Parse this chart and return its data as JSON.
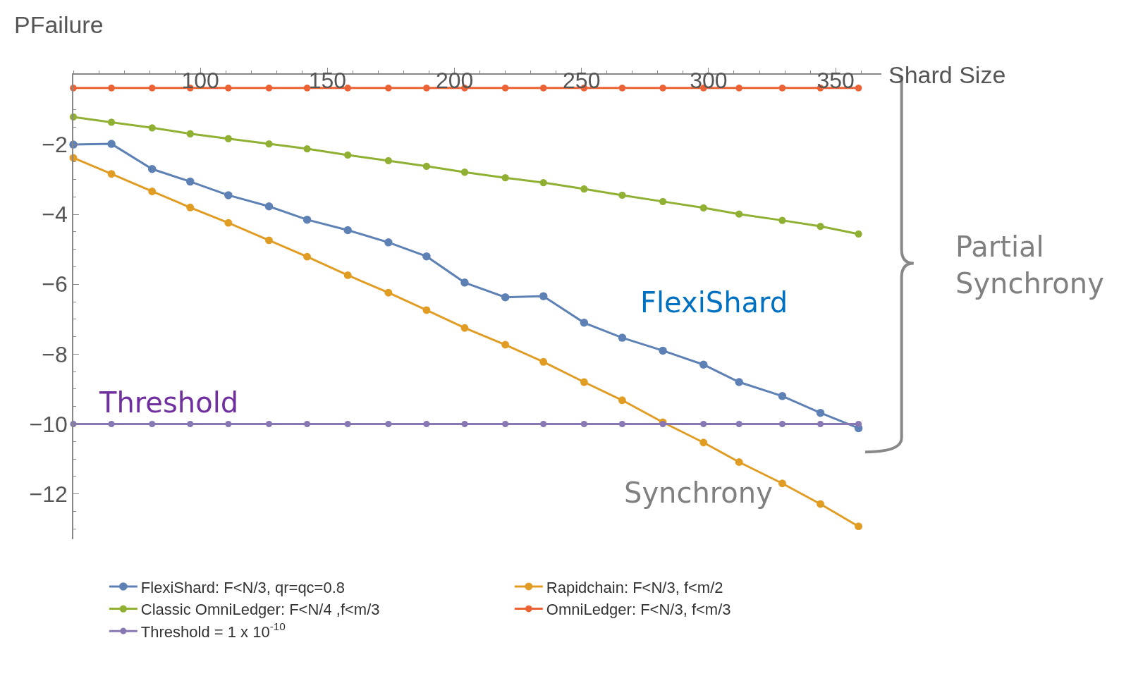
{
  "chart_data": {
    "type": "line",
    "xlabel": "Shard Size",
    "ylabel": "PFailure",
    "x": [
      50,
      65,
      81,
      96,
      111,
      127,
      142,
      158,
      174,
      189,
      204,
      220,
      235,
      251,
      266,
      282,
      298,
      312,
      329,
      344,
      359
    ],
    "series": [
      {
        "name": "FlexiShard: F<N/3, qr=qc=0.8",
        "color": "#5e81b5",
        "values": [
          -2.0,
          -1.98,
          -2.7,
          -3.06,
          -3.45,
          -3.77,
          -4.15,
          -4.45,
          -4.8,
          -5.2,
          -5.95,
          -6.37,
          -6.34,
          -7.1,
          -7.53,
          -7.9,
          -8.3,
          -8.8,
          -9.2,
          -9.68,
          -10.12
        ]
      },
      {
        "name": "Rapidchain: F<N/3, f<m/2",
        "color": "#e19c24",
        "values": [
          -2.38,
          -2.84,
          -3.34,
          -3.8,
          -4.24,
          -4.74,
          -5.21,
          -5.74,
          -6.24,
          -6.74,
          -7.25,
          -7.73,
          -8.22,
          -8.8,
          -9.32,
          -9.95,
          -10.53,
          -11.09,
          -11.7,
          -12.29,
          -12.93
        ]
      },
      {
        "name": "Classic OmniLedger: F<N/4 ,f<m/3",
        "color": "#8fb032",
        "values": [
          -1.21,
          -1.36,
          -1.52,
          -1.69,
          -1.83,
          -1.98,
          -2.12,
          -2.3,
          -2.46,
          -2.62,
          -2.79,
          -2.95,
          -3.09,
          -3.27,
          -3.45,
          -3.63,
          -3.81,
          -3.99,
          -4.17,
          -4.34,
          -4.56
        ]
      },
      {
        "name": "OmniLedger: F<N/3, f<m/3",
        "color": "#eb6235",
        "values": [
          -0.38,
          -0.38,
          -0.38,
          -0.38,
          -0.38,
          -0.38,
          -0.38,
          -0.38,
          -0.38,
          -0.38,
          -0.38,
          -0.38,
          -0.38,
          -0.38,
          -0.38,
          -0.38,
          -0.38,
          -0.38,
          -0.38,
          -0.38,
          -0.38
        ]
      },
      {
        "name": "Threshold = 1 x 10$^{-10}$",
        "color": "#8778b3",
        "values": [
          -10,
          -10,
          -10,
          -10,
          -10,
          -10,
          -10,
          -10,
          -10,
          -10,
          -10,
          -10,
          -10,
          -10,
          -10,
          -10,
          -10,
          -10,
          -10,
          -10,
          -10
        ]
      }
    ],
    "xlim": [
      50,
      368
    ],
    "xticks": [
      100,
      150,
      200,
      250,
      300,
      350
    ],
    "ylim": [
      -13.3,
      0
    ],
    "yticks": [
      -12,
      -10,
      -8,
      -6,
      -4,
      -2
    ],
    "annotations": [
      "FlexiShard",
      "Threshold",
      "Synchrony",
      "Partial\nSynchrony"
    ],
    "marker": "circle",
    "line_style": "solid",
    "legend": "bottom"
  }
}
